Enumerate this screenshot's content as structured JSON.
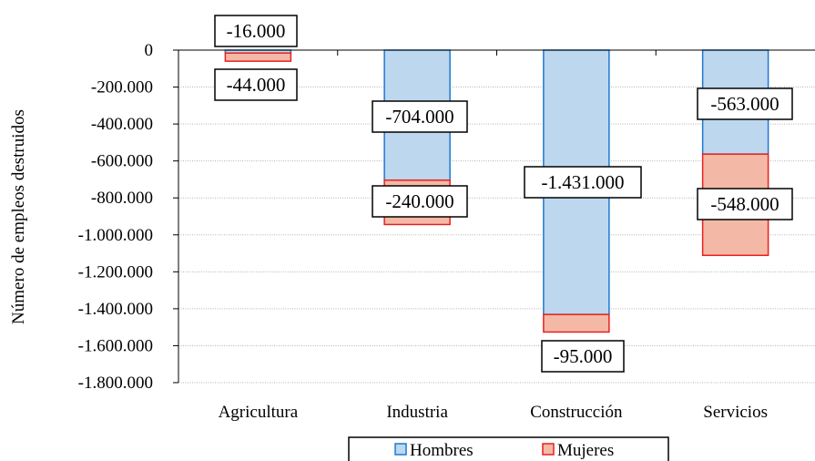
{
  "chart_data": {
    "type": "bar",
    "stacked": true,
    "categories": [
      "Agricultura",
      "Industria",
      "Construcción",
      "Servicios"
    ],
    "series": [
      {
        "name": "Hombres",
        "values": [
          -16000,
          -704000,
          -1431000,
          -563000
        ],
        "color": "#bdd7ee",
        "border": "#1f78d1"
      },
      {
        "name": "Mujeres",
        "values": [
          -44000,
          -240000,
          -95000,
          -548000
        ],
        "color": "#f4b9a6",
        "border": "#e8201f"
      }
    ],
    "data_labels": [
      [
        "-16.000",
        "-704.000",
        "-1.431.000",
        "-563.000"
      ],
      [
        "-44.000",
        "-240.000",
        "-95.000",
        "-548.000"
      ]
    ],
    "ylabel": "Número de empleos destruidos",
    "xlabel": "",
    "ylim": [
      -1800000,
      0
    ],
    "yticks": [
      0,
      -200000,
      -400000,
      -600000,
      -800000,
      -1000000,
      -1200000,
      -1400000,
      -1600000,
      -1800000
    ],
    "ytick_labels": [
      "0",
      "-200.000",
      "-400.000",
      "-600.000",
      "-800.000",
      "-1.000.000",
      "-1.200.000",
      "-1.400.000",
      "-1.600.000",
      "-1.800.000"
    ],
    "grid": true,
    "legend_position": "bottom"
  }
}
